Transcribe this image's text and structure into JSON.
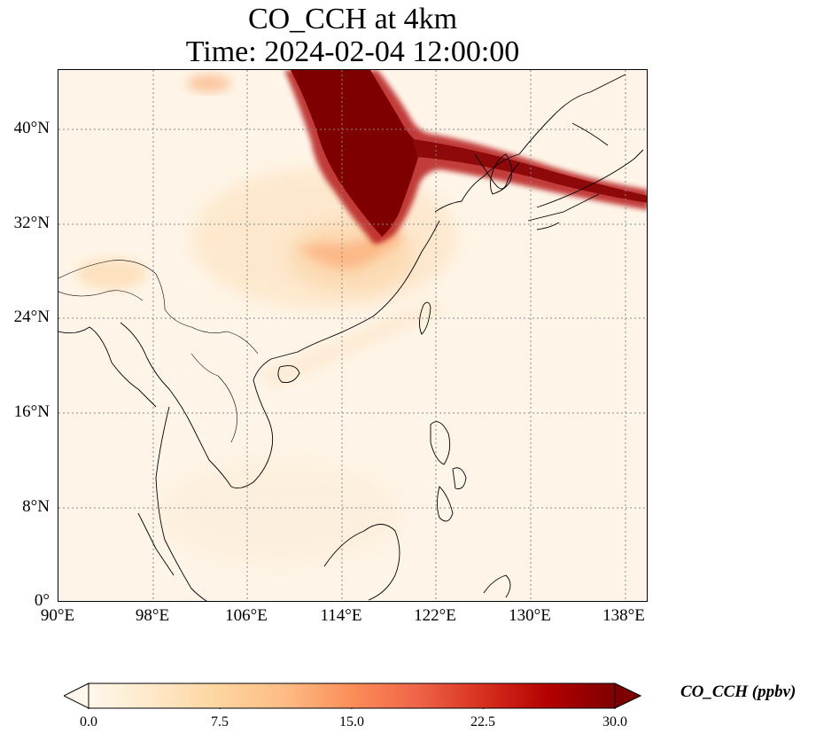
{
  "title": {
    "line1": "CO_CCH at 4km",
    "line2": "Time: 2024-02-04 12:00:00"
  },
  "axes": {
    "lat_labels": [
      "40°N",
      "32°N",
      "24°N",
      "16°N",
      "8°N",
      "0°"
    ],
    "lon_labels": [
      "90°E",
      "98°E",
      "106°E",
      "114°E",
      "122°E",
      "130°E",
      "138°E"
    ]
  },
  "colorbar": {
    "label": "CO_CCH (ppbv)",
    "ticks": [
      "0.0",
      "7.5",
      "15.0",
      "22.5",
      "30.0"
    ],
    "min": 0,
    "max": 30,
    "extend": "both",
    "colormap": "OrRd",
    "colors": [
      "#fff7ec",
      "#fee8c8",
      "#fdd49e",
      "#fdbb84",
      "#fc8d59",
      "#ef6548",
      "#d7301f",
      "#b30000",
      "#7f0000"
    ]
  },
  "map": {
    "lon_range": [
      90,
      140
    ],
    "lat_range": [
      0,
      45
    ],
    "gridlines": "dotted grey",
    "background_color": "#fef5e8",
    "plume_color": "#7f0000"
  }
}
